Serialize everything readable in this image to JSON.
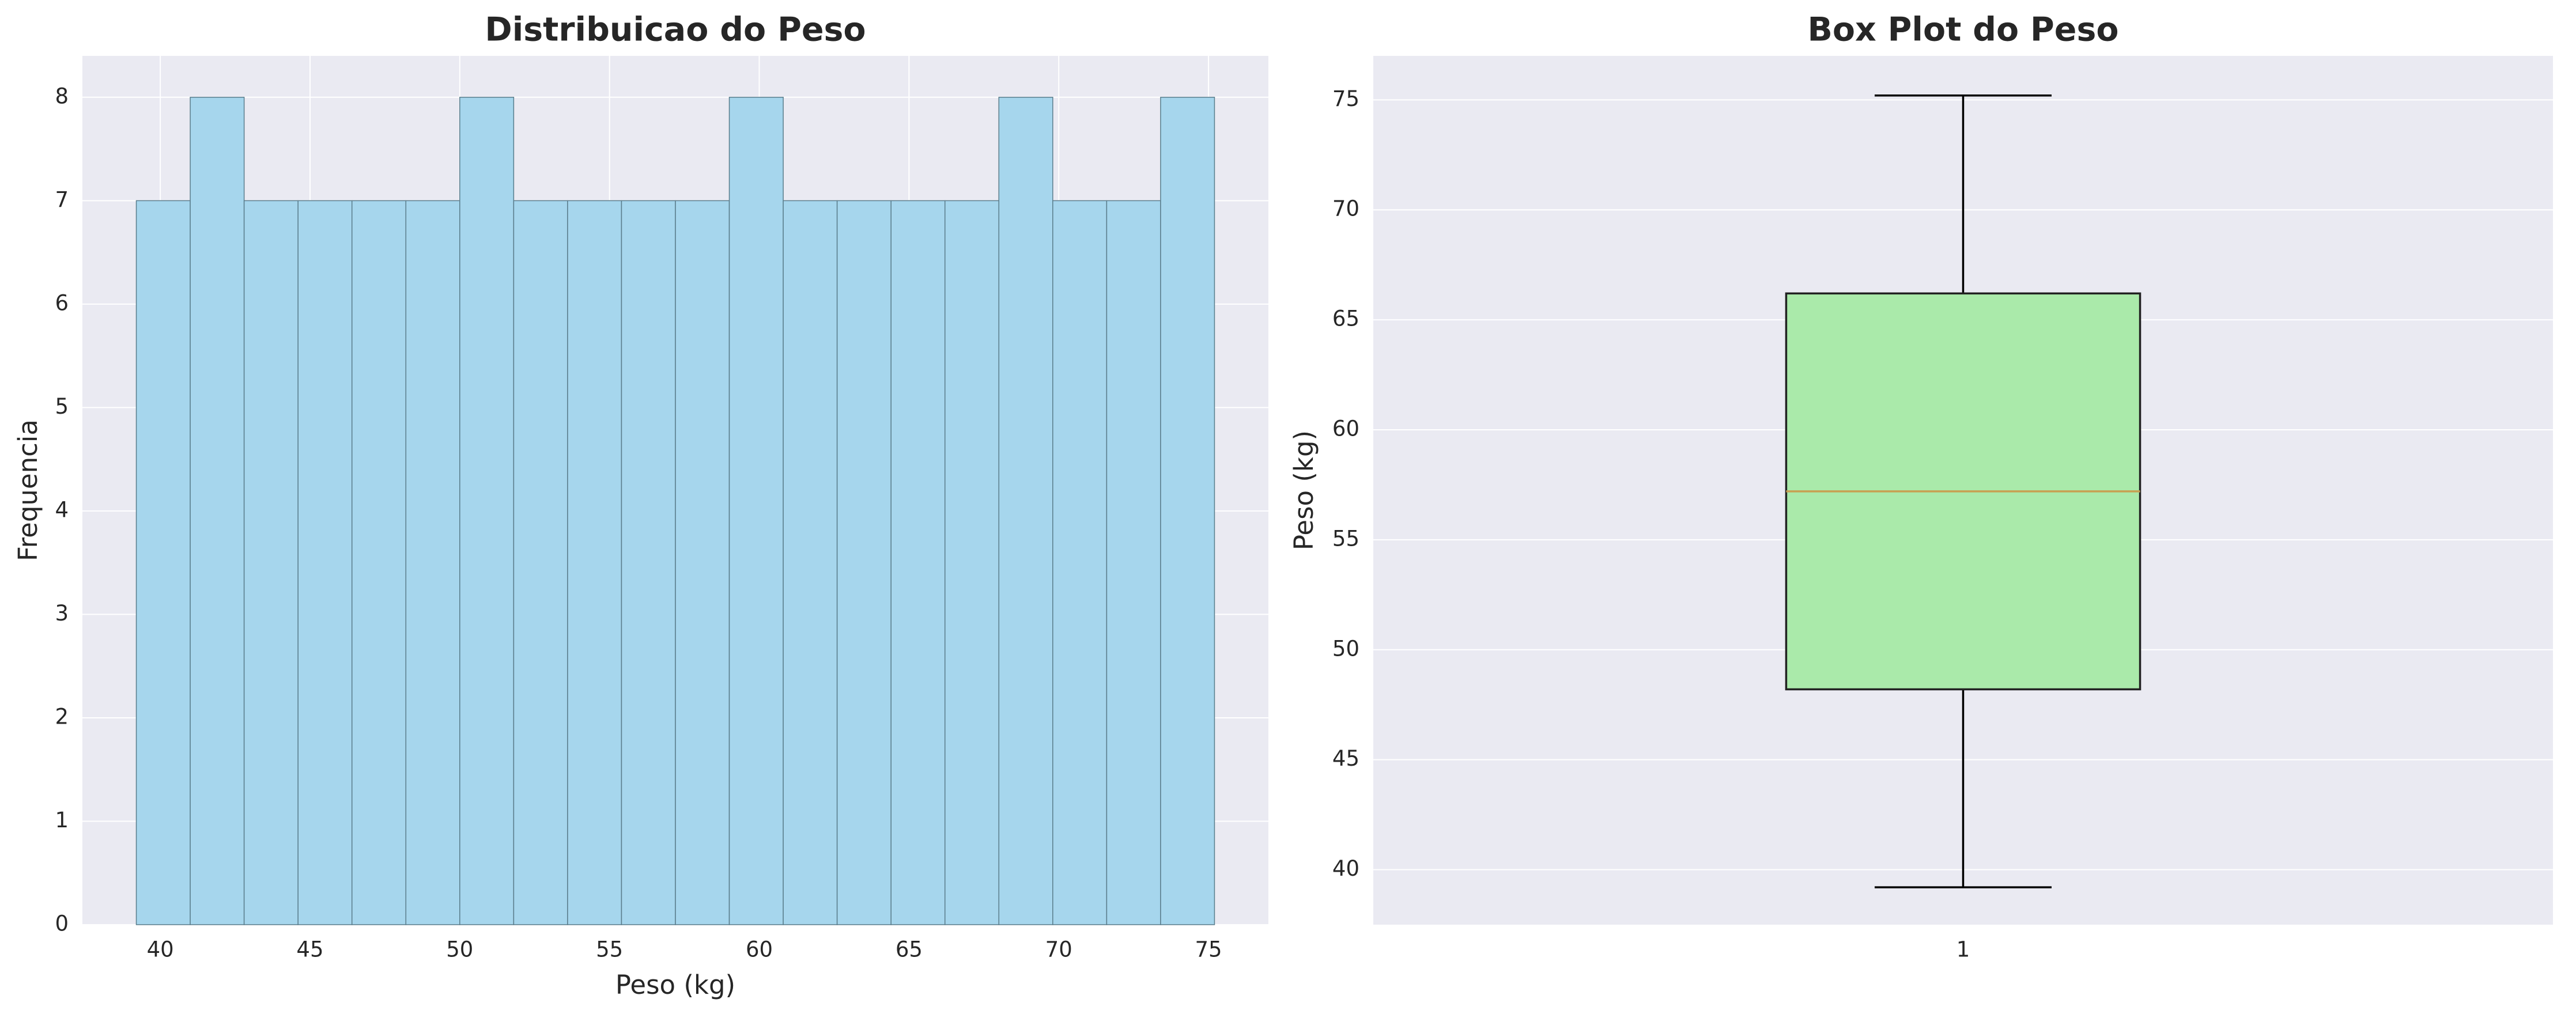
{
  "chart_data": [
    {
      "type": "histogram",
      "title": "Distribuicao do Peso",
      "x_label": "Peso (kg)",
      "y_label": "Frequencia",
      "bins": [
        39.2,
        41.0,
        42.8,
        44.6,
        46.4,
        48.2,
        50.0,
        51.8,
        53.6,
        55.4,
        57.2,
        59.0,
        60.8,
        62.6,
        64.4,
        66.2,
        68.0,
        69.8,
        71.6,
        73.4,
        75.2
      ],
      "values": [
        7,
        8,
        7,
        7,
        7,
        7,
        8,
        7,
        7,
        7,
        7,
        8,
        7,
        7,
        7,
        7,
        8,
        7,
        7,
        8
      ],
      "color": "#a6d6ed",
      "edgecolor": "#5a7d8c",
      "xlim": [
        37.4,
        77.0
      ],
      "xticks": [
        40,
        45,
        50,
        55,
        60,
        65,
        70,
        75
      ],
      "ylim": [
        0,
        8.4
      ],
      "yticks": [
        0,
        1,
        2,
        3,
        4,
        5,
        6,
        7,
        8
      ],
      "grid": true
    },
    {
      "type": "box",
      "title": "Box Plot do Peso",
      "y_label": "Peso (kg)",
      "categories": [
        "1"
      ],
      "boxes": [
        {
          "low": 39.2,
          "q1": 48.2,
          "median": 57.2,
          "q3": 66.2,
          "high": 75.2
        }
      ],
      "color": "#aaeaaa",
      "median_color": "#c8a050",
      "ylim": [
        37.5,
        77.0
      ],
      "yticks": [
        40,
        45,
        50,
        55,
        60,
        65,
        70,
        75
      ],
      "grid": true
    }
  ]
}
